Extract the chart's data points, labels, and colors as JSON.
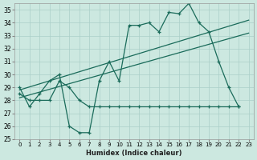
{
  "xlabel": "Humidex (Indice chaleur)",
  "background_color": "#cce8e0",
  "grid_color": "#aacfc8",
  "line_color": "#1a6b5a",
  "xlim": [
    -0.5,
    23.5
  ],
  "ylim": [
    25,
    35.5
  ],
  "yticks": [
    25,
    26,
    27,
    28,
    29,
    30,
    31,
    32,
    33,
    34,
    35
  ],
  "xticks": [
    0,
    1,
    2,
    3,
    4,
    5,
    6,
    7,
    8,
    9,
    10,
    11,
    12,
    13,
    14,
    15,
    16,
    17,
    18,
    19,
    20,
    21,
    22,
    23
  ],
  "series_main": [
    29,
    27.5,
    28.5,
    29.5,
    30,
    26,
    25.5,
    25.5,
    29.5,
    31,
    29.5,
    33.8,
    33.8,
    34,
    33.3,
    34.8,
    34.7,
    35.5,
    34.0,
    33.3,
    31,
    29,
    27.5
  ],
  "series_flat": [
    28.5,
    28,
    28,
    28,
    29.5,
    29,
    28,
    27.5,
    27.5,
    27.5,
    27.5,
    27.5,
    27.5,
    27.5,
    27.5,
    27.5,
    27.5,
    27.5,
    27.5,
    27.5,
    27.5,
    27.5,
    27.5
  ],
  "trend1_x": [
    0,
    23
  ],
  "trend1_y": [
    28.2,
    33.2
  ],
  "trend2_x": [
    0,
    23
  ],
  "trend2_y": [
    28.8,
    34.2
  ]
}
